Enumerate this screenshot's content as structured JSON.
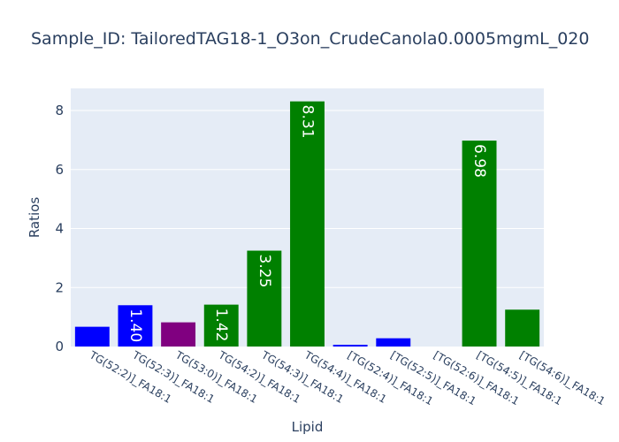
{
  "chart_data": {
    "type": "bar",
    "title": "Sample_ID: TailoredTAG18-1_O3on_CrudeCanola0.0005mgmL_020",
    "xlabel": "Lipid",
    "ylabel": "Ratios",
    "ylim": [
      0,
      8.75
    ],
    "yticks": [
      0,
      2,
      4,
      6,
      8
    ],
    "grid": true,
    "categories": [
      "TG(52:2)]_FA18:1",
      "TG(52:3)]_FA18:1",
      "TG(53:0)]_FA18:1",
      "TG(54:2)]_FA18:1",
      "TG(54:3)]_FA18:1",
      "TG(54:4)]_FA18:1",
      "[TG(52:4)]_FA18:1",
      "[TG(52:5)]_FA18:1",
      "[TG(52:6)]_FA18:1",
      "[TG(54:5)]_FA18:1",
      "[TG(54:6)]_FA18:1"
    ],
    "values": [
      0.67,
      1.4,
      0.82,
      1.42,
      3.25,
      8.31,
      0.06,
      0.28,
      0.0,
      6.98,
      1.25
    ],
    "colors": [
      "#0000ff",
      "#0000ff",
      "#800080",
      "#008000",
      "#008000",
      "#008000",
      "#0000ff",
      "#0000ff",
      "#0000ff",
      "#008000",
      "#008000"
    ],
    "data_labels": [
      "",
      "1.40",
      "",
      "1.42",
      "3.25",
      "8.31",
      "",
      "",
      "",
      "6.98",
      ""
    ],
    "plot_background": "#e5ecf6"
  }
}
